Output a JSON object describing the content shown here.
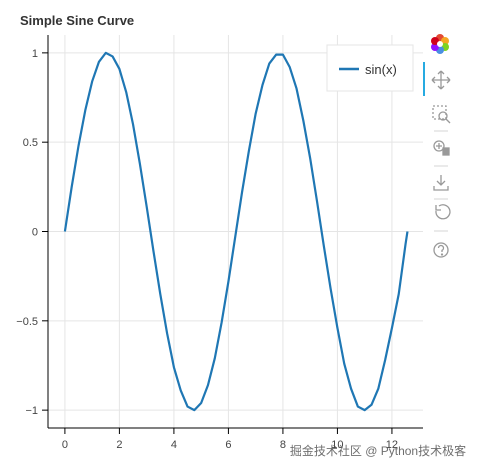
{
  "chart_data": {
    "type": "line",
    "title": "Simple Sine Curve",
    "x": [
      0,
      0.25,
      0.5,
      0.75,
      1,
      1.25,
      1.5,
      1.75,
      2,
      2.25,
      2.5,
      2.75,
      3,
      3.25,
      3.5,
      3.75,
      4,
      4.25,
      4.5,
      4.75,
      5,
      5.25,
      5.5,
      5.75,
      6,
      6.25,
      6.5,
      6.75,
      7,
      7.25,
      7.5,
      7.75,
      8,
      8.25,
      8.5,
      8.75,
      9,
      9.25,
      9.5,
      9.75,
      10,
      10.25,
      10.5,
      10.75,
      11,
      11.25,
      11.5,
      11.75,
      12,
      12.25,
      12.5,
      12.57
    ],
    "series": [
      {
        "name": "sin(x)",
        "color": "#1f77b4",
        "values": [
          0,
          0.25,
          0.48,
          0.68,
          0.84,
          0.95,
          1.0,
          0.98,
          0.91,
          0.78,
          0.6,
          0.38,
          0.14,
          -0.11,
          -0.35,
          -0.57,
          -0.76,
          -0.89,
          -0.98,
          -1.0,
          -0.96,
          -0.86,
          -0.71,
          -0.51,
          -0.28,
          -0.03,
          0.22,
          0.45,
          0.66,
          0.82,
          0.94,
          0.99,
          0.99,
          0.92,
          0.8,
          0.62,
          0.41,
          0.17,
          -0.08,
          -0.32,
          -0.54,
          -0.74,
          -0.88,
          -0.98,
          -1.0,
          -0.97,
          -0.88,
          -0.72,
          -0.54,
          -0.35,
          -0.07,
          0.0
        ]
      }
    ],
    "xlim": [
      -0.62,
      13.14
    ],
    "ylim": [
      -1.1,
      1.1
    ],
    "xticks": [
      0,
      2,
      4,
      6,
      8,
      10,
      12
    ],
    "yticks": [
      {
        "value": -1,
        "label": "−1"
      },
      {
        "value": -0.5,
        "label": "−0.5"
      },
      0,
      0.5,
      1
    ],
    "grid": true,
    "legend": "top-right",
    "watermark": "掘金技术社区 @ Python技术极客"
  }
}
